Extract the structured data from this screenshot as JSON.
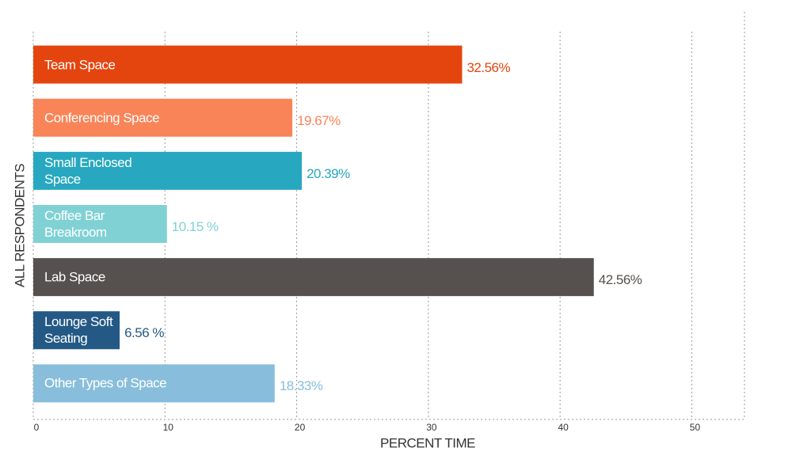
{
  "chart_data": {
    "type": "bar",
    "orientation": "horizontal",
    "xlabel": "PERCENT TIME",
    "ylabel": "ALL RESPONDENTS",
    "categories": [
      "Team Space",
      "Conferencing Space",
      "Small Enclosed\nSpace",
      "Coffee Bar\nBreakroom",
      "Lab Space",
      "Lounge Soft\nSeating",
      "Other Types of Space"
    ],
    "values": [
      32.56,
      19.67,
      20.39,
      10.15,
      42.56,
      6.56,
      18.33
    ],
    "value_labels": [
      "32.56%",
      "19.67%",
      "20.39%",
      "10.15 %",
      "42.56%",
      "6.56 %",
      "18.33%"
    ],
    "colors": [
      "#e4450f",
      "#f98457",
      "#27a8c0",
      "#80d1d4",
      "#56514e",
      "#245985",
      "#88bedb"
    ],
    "label_colors": [
      "#e4450f",
      "#f98457",
      "#27a8c0",
      "#80d1d4",
      "#56514e",
      "#245985",
      "#88bedb"
    ],
    "xlim": [
      0,
      54
    ],
    "xticks": [
      0,
      10,
      20,
      30,
      40,
      50
    ],
    "grid": true
  }
}
